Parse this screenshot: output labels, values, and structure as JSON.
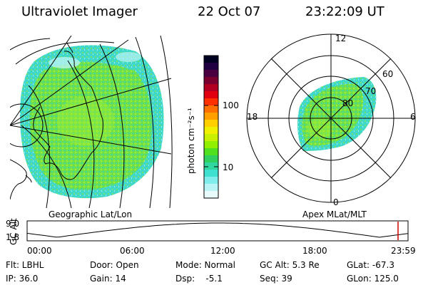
{
  "header": {
    "instrument": "Ultraviolet Imager",
    "date": "22 Oct 07",
    "time": "23:22:09 UT"
  },
  "colorbar": {
    "label": "photon cm⁻²s⁻¹",
    "ticks": [
      "100",
      "10"
    ],
    "colors": [
      "#000020",
      "#200040",
      "#4a0040",
      "#7a0030",
      "#b00020",
      "#e00010",
      "#ff3000",
      "#ff7000",
      "#ffa000",
      "#ffd000",
      "#f0f000",
      "#c8f000",
      "#90f000",
      "#50e020",
      "#30d060",
      "#30d8a0",
      "#40e0d0",
      "#80ecec",
      "#b8f4f4",
      "#e8fafa"
    ]
  },
  "geographic": {
    "label": "Geographic Lat/Lon"
  },
  "polar": {
    "label": "Apex MLat/MLT",
    "mlt": {
      "top": "12",
      "left": "18",
      "right": "6",
      "bottom": "0"
    },
    "mlat": [
      "60",
      "70",
      "80"
    ]
  },
  "timeline": {
    "ylabel": "GC Alt",
    "yticks": [
      "9.0",
      "1.8"
    ],
    "xticks": [
      "00:00",
      "06:00",
      "12:00",
      "18:00",
      "23:59"
    ],
    "current_time_hours": 23.37
  },
  "info": {
    "flt": "Flt: LBHL",
    "ip": "IP: 36.0",
    "door": "Door: Open",
    "gain": "Gain: 14",
    "mode": "Mode: Normal",
    "dsp": "Dsp:    -5.1",
    "gcalt": "GC Alt: 5.3 Re",
    "seq": "Seq: 39",
    "glat": "GLat: -67.3",
    "glon": "GLon: 125.0"
  }
}
